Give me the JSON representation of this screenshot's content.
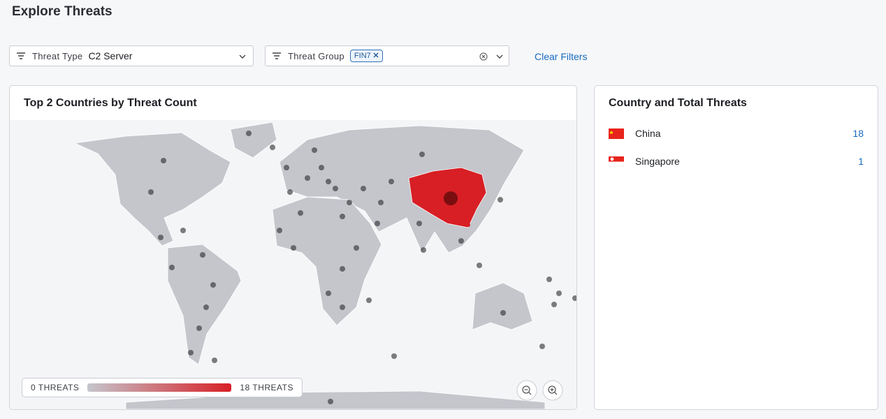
{
  "header": {
    "title": "Explore Threats"
  },
  "filters": [
    {
      "label": "Threat Type",
      "value": "C2 Server"
    },
    {
      "label": "Threat Group",
      "chips": [
        "FIN7"
      ]
    }
  ],
  "clear_filters": "Clear Filters",
  "map_panel": {
    "title": "Top 2 Countries by Threat Count",
    "legend": {
      "min": "0 THREATS",
      "max": "18 THREATS"
    }
  },
  "list_panel": {
    "title": "Country and Total Threats",
    "rows": [
      {
        "country": "China",
        "count": 18
      },
      {
        "country": "Singapore",
        "count": 1
      }
    ]
  }
}
